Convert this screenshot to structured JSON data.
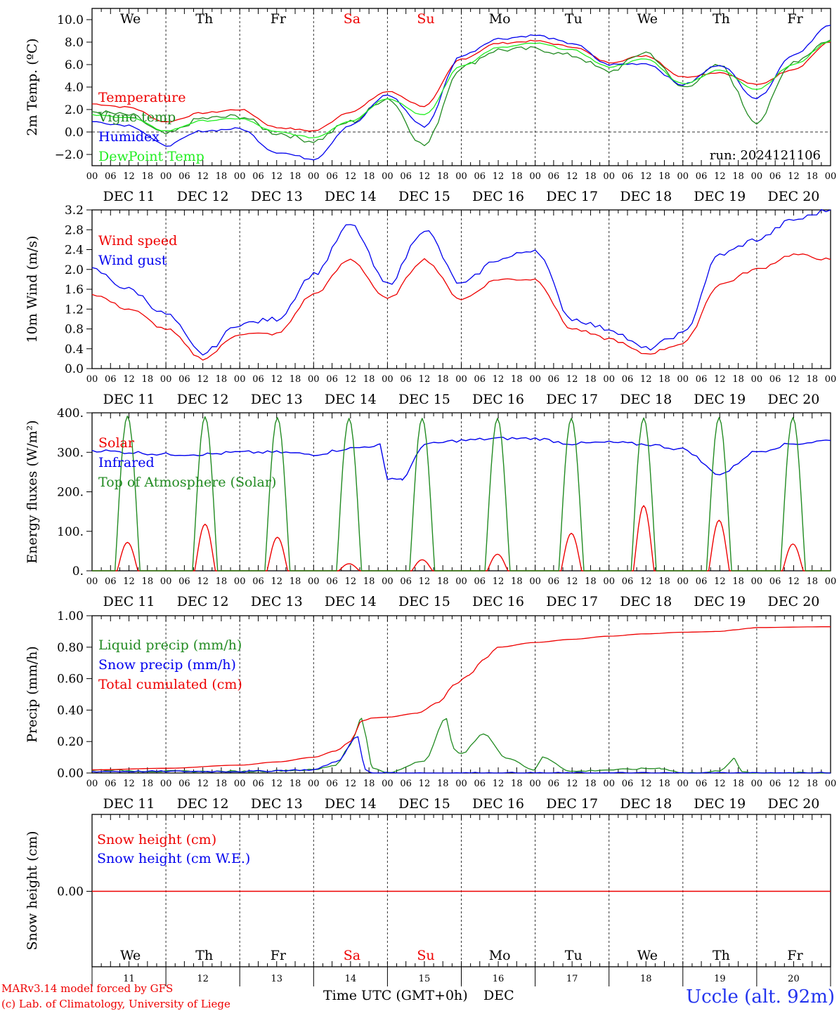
{
  "run_label": "run: 2024121106",
  "weekdays": [
    "We",
    "Th",
    "Fr",
    "Sa",
    "Su",
    "Mo",
    "Tu",
    "We",
    "Th",
    "Fr"
  ],
  "weekend_flags": [
    false,
    false,
    false,
    true,
    true,
    false,
    false,
    false,
    false,
    false
  ],
  "date_labels": [
    "DEC 11",
    "DEC 12",
    "DEC 13",
    "DEC 14",
    "DEC 15",
    "DEC 16",
    "DEC 17",
    "DEC 18",
    "DEC 19",
    "DEC 20"
  ],
  "hour_ticks": [
    "00",
    "06",
    "12",
    "18"
  ],
  "hour_end": "00",
  "bottom_day_numbers": [
    "11",
    "12",
    "13",
    "14",
    "15",
    "16",
    "17",
    "18",
    "19",
    "20"
  ],
  "xlabel": "Time UTC (GMT+0h)",
  "month_label": "DEC",
  "footer": {
    "model": "MARv3.14 model forced by GFS",
    "credit": "(c) Lab. of Climatology, University of Liege",
    "location": "Uccle (alt. 92m)"
  },
  "colors": {
    "red": "#ee0000",
    "green": "#228b22",
    "blue": "#0000ee",
    "lime": "#22ee22"
  },
  "chart_data": [
    {
      "id": "temp",
      "type": "line",
      "ylabel": "2m Temp. (ºC)",
      "ylim": [
        -3,
        11
      ],
      "yticks": [
        "10.0",
        "8.0",
        "6.0",
        "4.0",
        "2.0",
        "0.0",
        "−2.0"
      ],
      "ytick_values": [
        10,
        8,
        6,
        4,
        2,
        0,
        -2
      ],
      "zero_line": true,
      "x_days": [
        0,
        0.5,
        1,
        1.5,
        2,
        2.5,
        3,
        3.5,
        4,
        4.5,
        5,
        5.5,
        6,
        6.5,
        7,
        7.5,
        8,
        8.5,
        9,
        9.5,
        10
      ],
      "series": [
        {
          "name": "Temperature",
          "color": "#ee0000",
          "values": [
            2.5,
            2.2,
            0.9,
            1.7,
            2.0,
            0.4,
            0.1,
            1.8,
            3.6,
            2.3,
            6.5,
            7.9,
            8.1,
            7.6,
            6.2,
            6.8,
            4.9,
            5.3,
            4.2,
            5.6,
            8.0
          ]
        },
        {
          "name": "Vigne temp",
          "color": "#228b22",
          "values": [
            1.8,
            1.5,
            -0.2,
            1.2,
            1.4,
            -0.1,
            -0.8,
            0.9,
            3.0,
            -1.2,
            5.8,
            7.3,
            7.4,
            6.8,
            5.4,
            7.1,
            4.0,
            5.9,
            0.9,
            6.3,
            8.2
          ]
        },
        {
          "name": "Humidex",
          "color": "#0000ee",
          "values": [
            0.9,
            0.6,
            -1.2,
            0.1,
            0.3,
            -1.8,
            -2.4,
            0.6,
            3.3,
            0.5,
            6.8,
            8.3,
            8.6,
            7.9,
            6.0,
            6.1,
            4.2,
            6.0,
            3.0,
            6.9,
            9.5
          ]
        },
        {
          "name": "DewPoint Temp",
          "color": "#22ee22",
          "values": [
            1.5,
            1.3,
            0.1,
            1.0,
            1.2,
            0.0,
            -0.5,
            1.0,
            3.0,
            1.5,
            5.9,
            7.5,
            7.9,
            7.3,
            5.8,
            6.5,
            4.3,
            5.5,
            3.8,
            6.0,
            8.1
          ]
        }
      ]
    },
    {
      "id": "wind",
      "type": "line",
      "ylabel": "10m Wind (m/s)",
      "ylim": [
        0,
        3.2
      ],
      "yticks": [
        "3.2",
        "2.8",
        "2.4",
        "2.0",
        "1.6",
        "1.2",
        "0.8",
        "0.4",
        "0.0"
      ],
      "ytick_values": [
        3.2,
        2.8,
        2.4,
        2.0,
        1.6,
        1.2,
        0.8,
        0.4,
        0.0
      ],
      "x_days": [
        0,
        0.5,
        1,
        1.5,
        2,
        2.5,
        3,
        3.5,
        4,
        4.5,
        5,
        5.5,
        6,
        6.5,
        7,
        7.5,
        8,
        8.5,
        9,
        9.5,
        10
      ],
      "series": [
        {
          "name": "Wind speed",
          "color": "#ee0000",
          "values": [
            1.5,
            1.2,
            0.8,
            0.2,
            0.7,
            0.7,
            1.5,
            2.2,
            1.4,
            2.2,
            1.4,
            1.8,
            1.8,
            0.8,
            0.6,
            0.3,
            0.5,
            1.7,
            2.0,
            2.3,
            2.2
          ]
        },
        {
          "name": "Wind gust",
          "color": "#0000ee",
          "values": [
            2.0,
            1.6,
            1.1,
            0.3,
            0.9,
            1.0,
            1.9,
            2.9,
            1.7,
            2.8,
            1.7,
            2.2,
            2.4,
            1.0,
            0.8,
            0.4,
            0.7,
            2.3,
            2.6,
            3.0,
            3.2
          ]
        }
      ]
    },
    {
      "id": "energy",
      "type": "line",
      "ylabel": "Energy fluxes (W/m²)",
      "ylim": [
        0,
        400
      ],
      "yticks": [
        "400.",
        "300.",
        "200.",
        "100.",
        "0."
      ],
      "ytick_values": [
        400,
        300,
        200,
        100,
        0
      ],
      "solar_peaks_day": [
        0.48,
        0.53,
        0.51,
        0.48,
        0.47,
        0.49,
        0.49,
        0.47,
        0.49,
        0.49
      ],
      "series": [
        {
          "name": "Solar",
          "color": "#ee0000",
          "peak_values": [
            72,
            118,
            85,
            18,
            28,
            42,
            95,
            165,
            128,
            68
          ]
        },
        {
          "name": "Infrared",
          "color": "#0000ee",
          "x_days": [
            0,
            0.5,
            1,
            1.5,
            2,
            2.5,
            3,
            3.5,
            3.9,
            4.0,
            4.2,
            4.5,
            5,
            5.5,
            6,
            6.5,
            7,
            7.5,
            8,
            8.5,
            9,
            9.5,
            10
          ],
          "values": [
            305,
            300,
            295,
            295,
            300,
            300,
            295,
            310,
            318,
            235,
            232,
            320,
            330,
            335,
            335,
            322,
            325,
            320,
            308,
            245,
            302,
            322,
            330
          ]
        },
        {
          "name": "Top of Atmosphere (Solar)",
          "color": "#228b22",
          "peak_values": [
            392,
            390,
            388,
            386,
            386,
            386,
            386,
            387,
            388,
            388
          ]
        }
      ]
    },
    {
      "id": "precip",
      "type": "line",
      "ylabel": "Precip (mm/h)",
      "ylim": [
        0,
        1.0
      ],
      "yticks": [
        "1.00",
        "0.80",
        "0.60",
        "0.40",
        "0.20",
        "0.00"
      ],
      "ytick_values": [
        1.0,
        0.8,
        0.6,
        0.4,
        0.2,
        0.0
      ],
      "series": [
        {
          "name": "Liquid precip (mm/h)",
          "color": "#228b22",
          "x_days": [
            0,
            1,
            2,
            3,
            3.3,
            3.5,
            3.65,
            3.8,
            4,
            4.5,
            4.8,
            4.9,
            5.0,
            5.3,
            5.6,
            6,
            6.1,
            6.5,
            7,
            7.7,
            8,
            8.5,
            8.7,
            8.8,
            9,
            10
          ],
          "values": [
            0.02,
            0.01,
            0.01,
            0.02,
            0.05,
            0.18,
            0.35,
            0.03,
            0.0,
            0.08,
            0.35,
            0.15,
            0.12,
            0.25,
            0.1,
            0.02,
            0.1,
            0.01,
            0.02,
            0.03,
            0.0,
            0.01,
            0.09,
            0.01,
            0.0,
            0.0
          ]
        },
        {
          "name": "Snow precip (mm/h)",
          "color": "#0000ee",
          "x_days": [
            0,
            1,
            2,
            3,
            3.3,
            3.6,
            3.7,
            3.8,
            4,
            5,
            10
          ],
          "values": [
            0.01,
            0.01,
            0.01,
            0.02,
            0.07,
            0.23,
            0.02,
            0.0,
            0.0,
            0.0,
            0.0
          ]
        },
        {
          "name": "Total cumulated (cm)",
          "color": "#ee0000",
          "x_days": [
            0,
            1,
            2,
            2.5,
            3,
            3.3,
            3.5,
            3.65,
            3.8,
            4,
            4.4,
            4.7,
            4.9,
            5.1,
            5.3,
            5.5,
            6,
            6.5,
            7,
            7.5,
            8,
            8.5,
            8.7,
            8.9,
            9,
            10
          ],
          "values": [
            0.02,
            0.03,
            0.05,
            0.07,
            0.1,
            0.14,
            0.2,
            0.33,
            0.35,
            0.355,
            0.38,
            0.45,
            0.56,
            0.62,
            0.72,
            0.8,
            0.83,
            0.85,
            0.87,
            0.885,
            0.895,
            0.9,
            0.91,
            0.92,
            0.925,
            0.93
          ]
        }
      ]
    },
    {
      "id": "snow",
      "type": "line",
      "ylabel": "Snow height (cm)",
      "yticks": [
        "0.00"
      ],
      "ytick_values": [
        0
      ],
      "series": [
        {
          "name": "Snow height (cm)",
          "color": "#ee0000",
          "values": [
            0,
            0
          ]
        },
        {
          "name": "Snow height (cm W.E.)",
          "color": "#0000ee",
          "values": [
            0,
            0
          ]
        }
      ]
    }
  ]
}
